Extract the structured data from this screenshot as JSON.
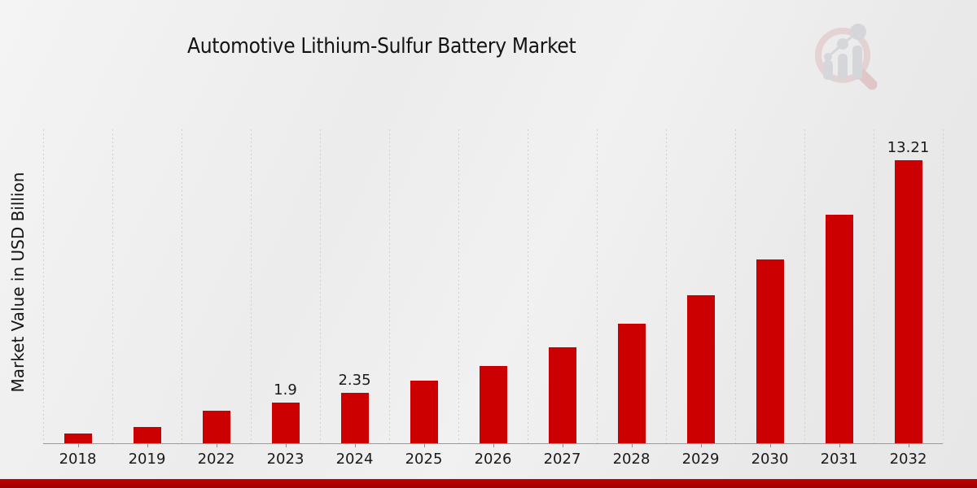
{
  "chart_data": {
    "type": "bar",
    "title": "Automotive Lithium-Sulfur Battery Market",
    "xlabel": "",
    "ylabel": "Market Value in USD Billion",
    "categories": [
      "2018",
      "2019",
      "2022",
      "2023",
      "2024",
      "2025",
      "2026",
      "2027",
      "2028",
      "2029",
      "2030",
      "2031",
      "2032"
    ],
    "values": [
      0.46,
      0.77,
      1.52,
      1.9,
      2.35,
      2.92,
      3.62,
      4.49,
      5.58,
      6.92,
      8.59,
      10.65,
      13.21
    ],
    "value_labels": {
      "2023": "1.9",
      "2024": "2.35",
      "2032": "13.21"
    },
    "ylim": [
      0,
      14.65
    ],
    "grid": "vertical-dashed",
    "legend": "none",
    "bar_color": "#cc0000"
  },
  "theme": {
    "background": "#ececec",
    "bar_color": "#cc0000",
    "footer_bar_color": "#b30000",
    "gridline_color": "#cfcfcf",
    "axis_color": "#9a9a9a",
    "text_color": "#1a1a1a",
    "watermark_pink": "#dfb3b3",
    "watermark_gray": "#c3c6cc"
  },
  "icons": {
    "watermark": "mrfr-logo-watermark-icon"
  }
}
